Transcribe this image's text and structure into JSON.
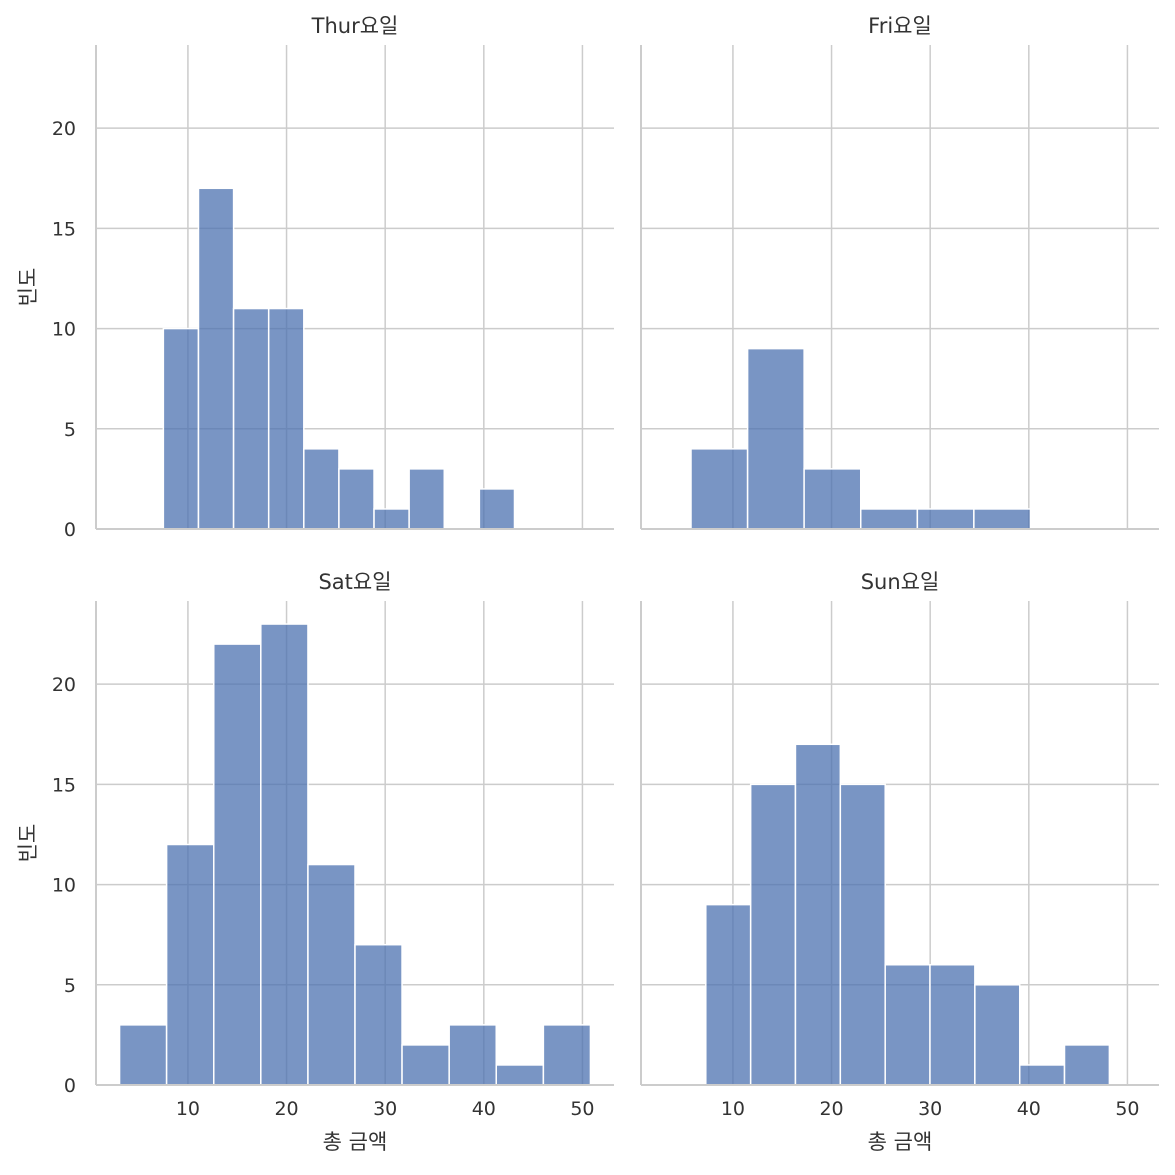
{
  "chart_data": [
    {
      "type": "histogram",
      "title": "Thur요일",
      "ylabel": "빈도",
      "bins": [
        7.51,
        11.07,
        14.63,
        18.19,
        21.75,
        25.31,
        28.87,
        32.43,
        35.99,
        39.55,
        43.11
      ],
      "values": [
        10,
        17,
        11,
        11,
        4,
        3,
        1,
        3,
        0,
        2
      ],
      "color": "#4c72b0",
      "xlim": [
        0.68,
        53.2
      ],
      "ylim": [
        0,
        24.15
      ],
      "xticks": [
        10,
        20,
        30,
        40,
        50
      ],
      "yticks": [
        0,
        5,
        10,
        15,
        20
      ],
      "grid": true
    },
    {
      "type": "histogram",
      "title": "Fri요일",
      "bins": [
        5.75,
        11.49,
        17.22,
        22.96,
        28.7,
        34.43,
        40.17
      ],
      "values": [
        4,
        9,
        3,
        1,
        1,
        1
      ],
      "color": "#4c72b0",
      "xlim": [
        0.68,
        53.2
      ],
      "ylim": [
        0,
        24.15
      ],
      "xticks": [
        10,
        20,
        30,
        40,
        50
      ],
      "yticks": [
        0,
        5,
        10,
        15,
        20
      ],
      "grid": true
    },
    {
      "type": "histogram",
      "title": "Sat요일",
      "xlabel": "총 금액",
      "ylabel": "빈도",
      "bins": [
        3.07,
        7.84,
        12.62,
        17.39,
        22.17,
        26.94,
        31.71,
        36.49,
        41.26,
        46.04,
        50.81
      ],
      "values": [
        3,
        12,
        22,
        23,
        11,
        7,
        2,
        3,
        1,
        3
      ],
      "color": "#4c72b0",
      "xlim": [
        0.68,
        53.2
      ],
      "ylim": [
        0,
        24.15
      ],
      "xticks": [
        10,
        20,
        30,
        40,
        50
      ],
      "yticks": [
        0,
        5,
        10,
        15,
        20
      ],
      "grid": true
    },
    {
      "type": "histogram",
      "title": "Sun요일",
      "xlabel": "총 금액",
      "bins": [
        7.25,
        11.8,
        16.34,
        20.89,
        25.44,
        29.98,
        34.53,
        39.08,
        43.62,
        48.17
      ],
      "values": [
        9,
        15,
        17,
        15,
        6,
        6,
        5,
        1,
        2
      ],
      "color": "#4c72b0",
      "xlim": [
        0.68,
        53.2
      ],
      "ylim": [
        0,
        24.15
      ],
      "xticks": [
        10,
        20,
        30,
        40,
        50
      ],
      "yticks": [
        0,
        5,
        10,
        15,
        20
      ],
      "grid": true
    }
  ]
}
